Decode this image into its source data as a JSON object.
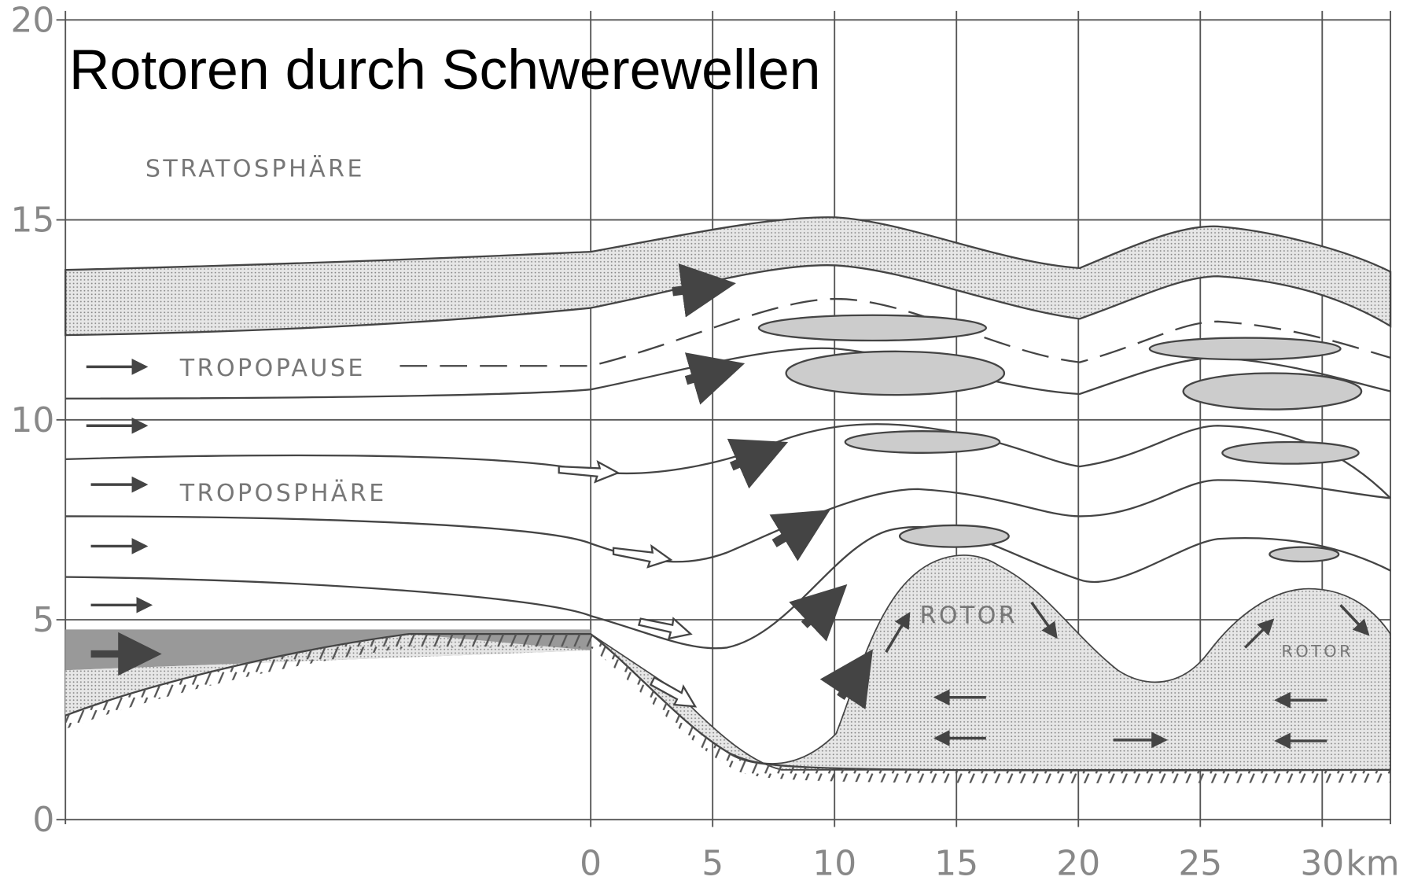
{
  "title": "Rotoren durch Schwerewellen",
  "labels": {
    "stratosphere": "STRATOSPHÄRE",
    "tropopause": "TROPOPAUSE",
    "troposphere": "TROPOSPHÄRE",
    "rotor_1": "ROTOR",
    "rotor_2": "ROTOR"
  },
  "y_axis": {
    "ticks": [
      0,
      5,
      10,
      15,
      20
    ]
  },
  "x_axis": {
    "ticks": [
      0,
      5,
      10,
      15,
      20,
      25,
      30
    ],
    "unit": "km"
  }
}
